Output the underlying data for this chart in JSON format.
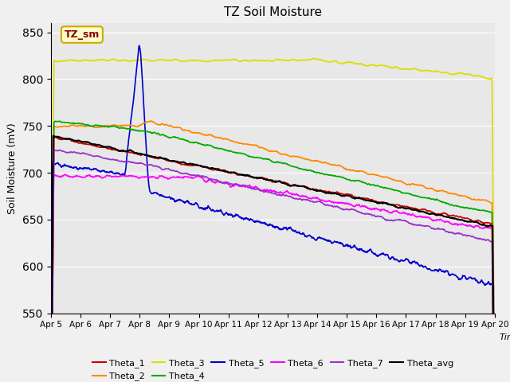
{
  "title": "TZ Soil Moisture",
  "xlabel": "Time",
  "ylabel": "Soil Moisture (mV)",
  "ylim": [
    550,
    860
  ],
  "background_color": "#e8e8e8",
  "fig_background": "#f0f0f0",
  "grid_color": "white",
  "series_colors": {
    "Theta_1": "#cc0000",
    "Theta_2": "#ff8800",
    "Theta_3": "#dddd00",
    "Theta_4": "#00aa00",
    "Theta_5": "#0000cc",
    "Theta_6": "#ff00ff",
    "Theta_7": "#9933cc",
    "Theta_avg": "#000000"
  },
  "legend_label": "TZ_sm",
  "x_tick_labels": [
    "Apr 5",
    "Apr 6",
    "Apr 7",
    "Apr 8",
    "Apr 9",
    "Apr 10",
    "Apr 11",
    "Apr 12",
    "Apr 13",
    "Apr 14",
    "Apr 15",
    "Apr 16",
    "Apr 17",
    "Apr 18",
    "Apr 19",
    "Apr 20"
  ],
  "n_points": 1500
}
